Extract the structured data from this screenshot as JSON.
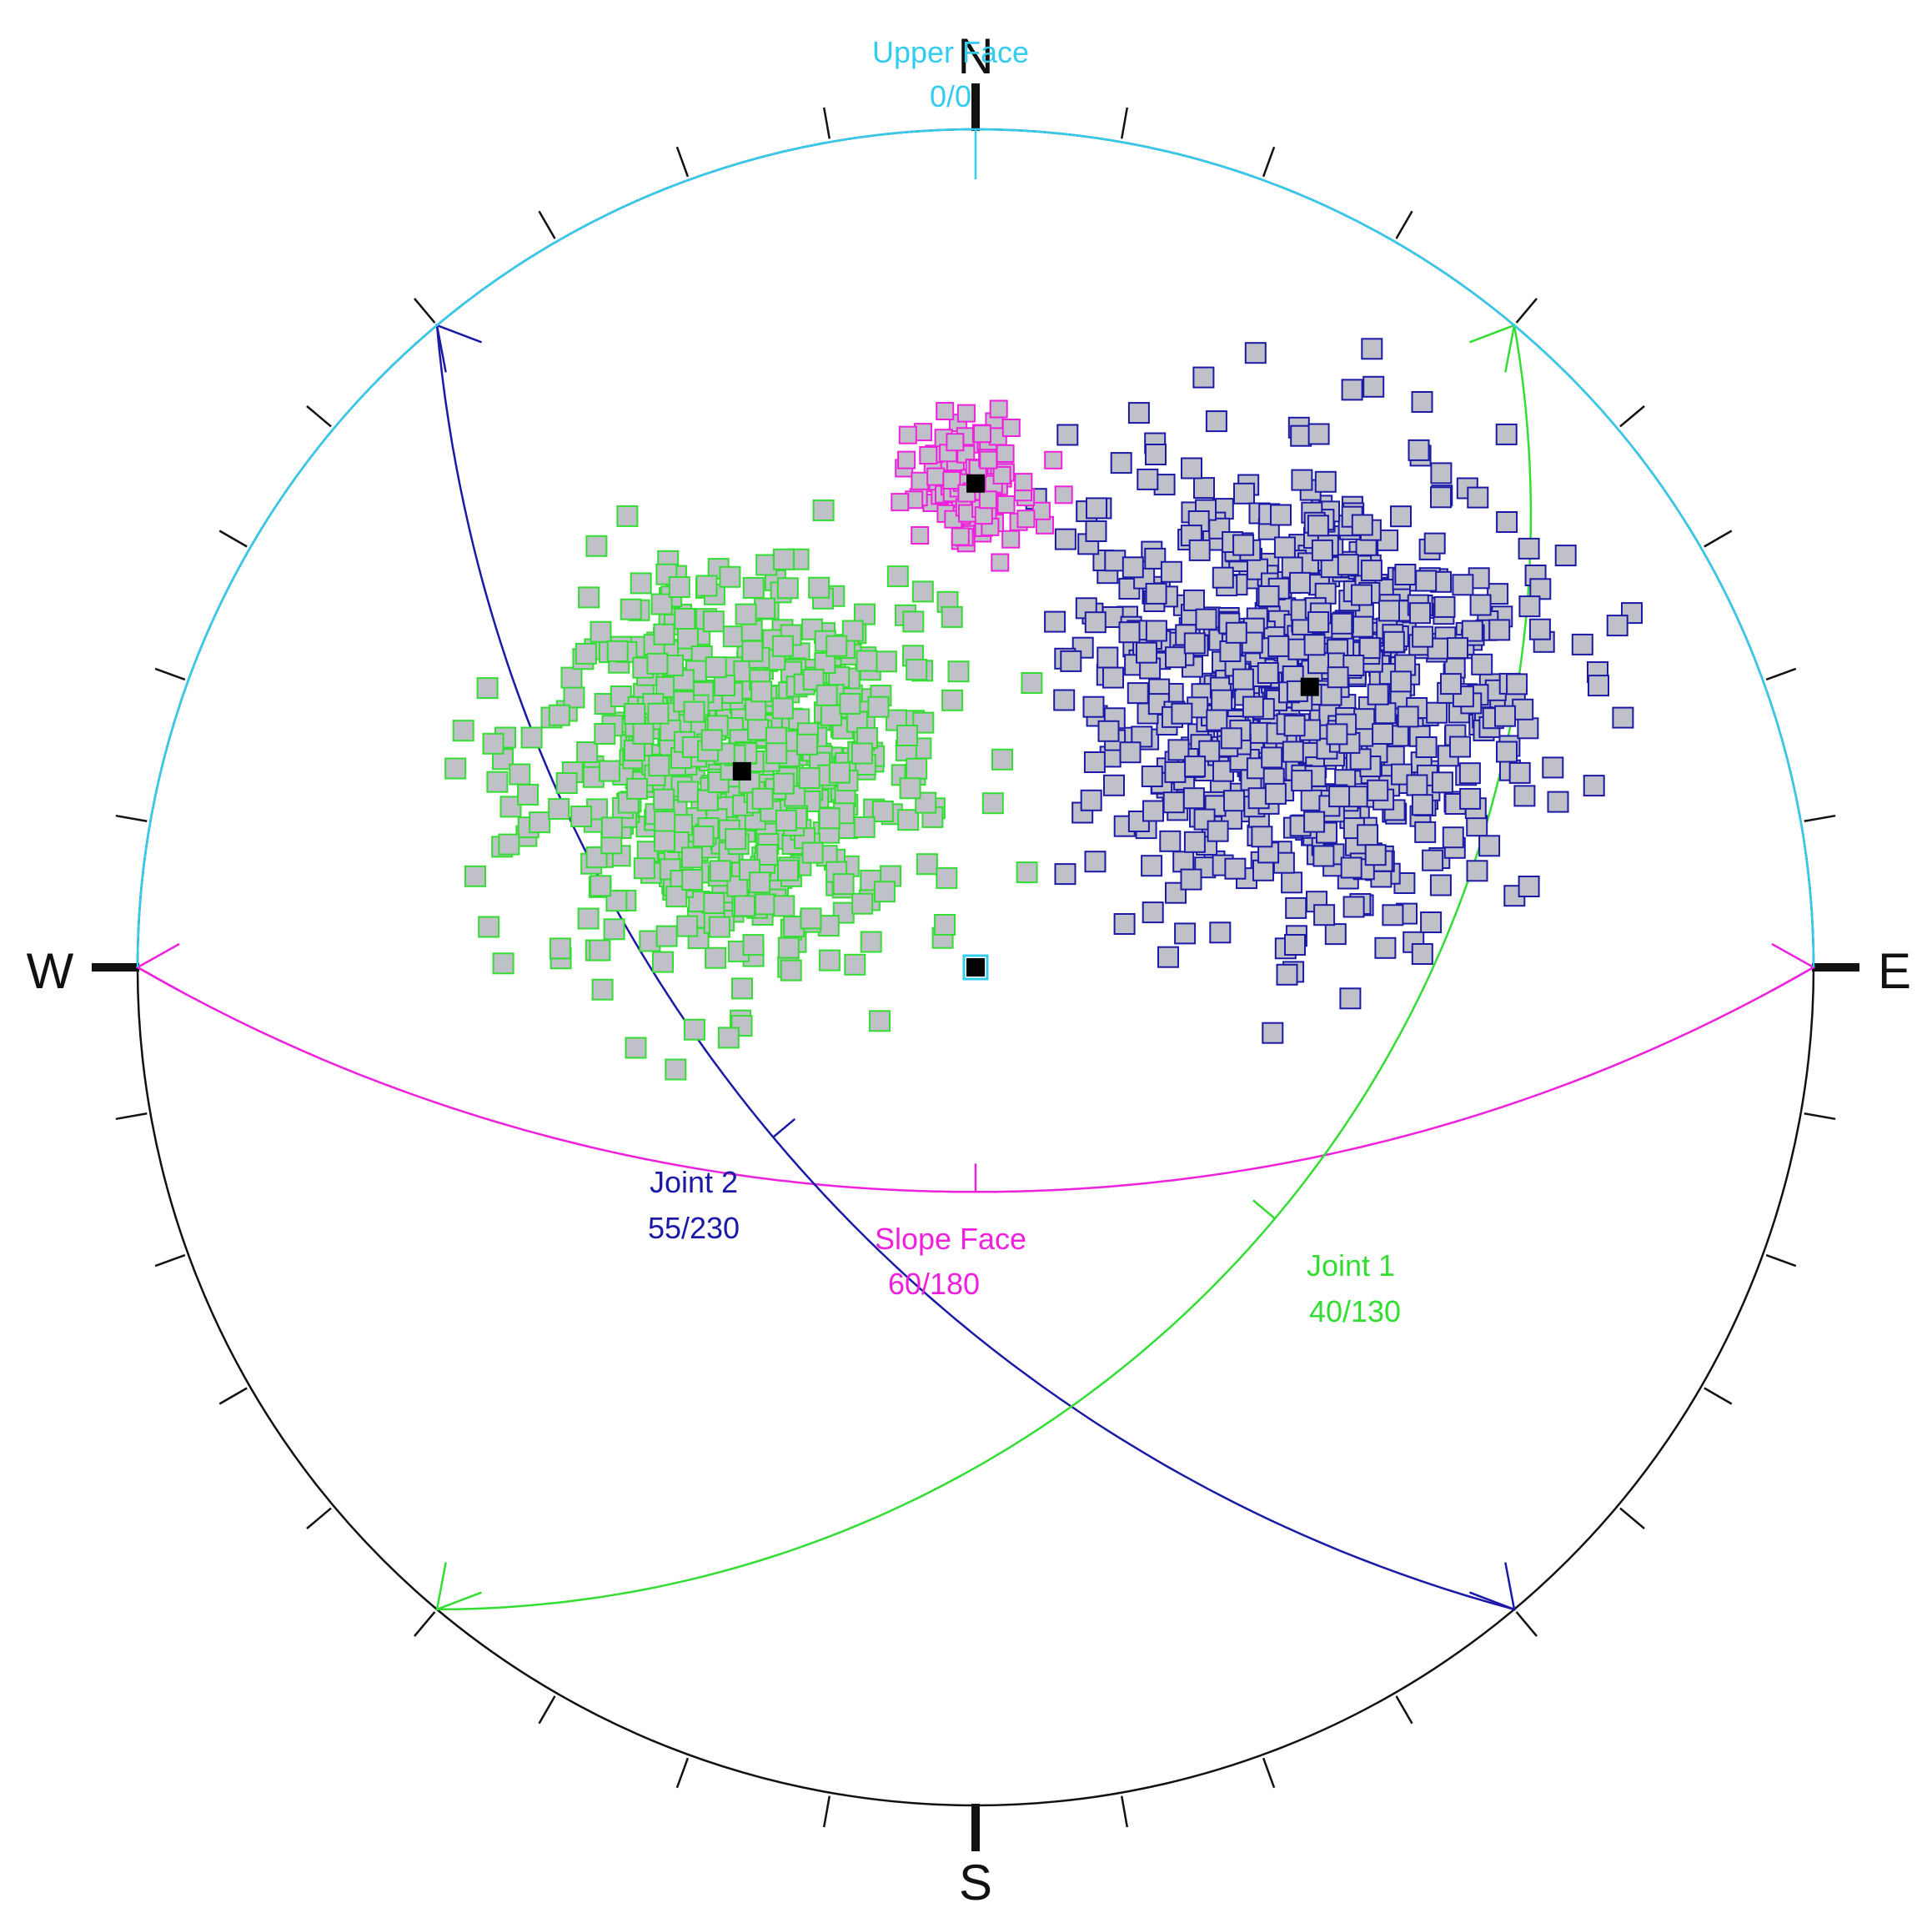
{
  "colors": {
    "background": "#ffffff",
    "net_outline": "#111111",
    "upper_face": "#33ccee",
    "joint1": "#33dd33",
    "joint2": "#1a1aa6",
    "slope_face": "#ee22dd",
    "pole_fill": "#c0c0c8",
    "mean_pole": "#000000"
  },
  "directions": {
    "north": "N",
    "east": "E",
    "south": "S",
    "west": "W"
  },
  "planes": {
    "upper_face": {
      "name": "Upper Face",
      "orientation": "0/0",
      "dip": 0,
      "dip_direction": 0
    },
    "joint1": {
      "name": "Joint 1",
      "orientation": "40/130",
      "dip": 40,
      "dip_direction": 130
    },
    "joint2": {
      "name": "Joint 2",
      "orientation": "55/230",
      "dip": 55,
      "dip_direction": 230
    },
    "slope_face": {
      "name": "Slope Face",
      "orientation": "60/180",
      "dip": 60,
      "dip_direction": 180
    }
  },
  "chart_data": {
    "type": "scatter",
    "projection": "stereonet",
    "tick_interval_deg": 10,
    "series": [
      {
        "name": "Joint 1",
        "color": "#33dd33",
        "mean_pole": {
          "plunge": 50,
          "trend": 310
        },
        "count": 650,
        "spread_deg": 17
      },
      {
        "name": "Joint 2",
        "color": "#1a1aa6",
        "mean_pole": {
          "plunge": 35,
          "trend": 50
        },
        "count": 800,
        "spread_deg": 19
      },
      {
        "name": "Slope Face",
        "color": "#ee22dd",
        "mean_pole": {
          "plunge": 30,
          "trend": 0
        },
        "count": 120,
        "spread_deg": 5
      },
      {
        "name": "Upper Face",
        "color": "#33ccee",
        "mean_pole": {
          "plunge": 90,
          "trend": 0
        },
        "count": 1,
        "spread_deg": 0
      }
    ]
  }
}
